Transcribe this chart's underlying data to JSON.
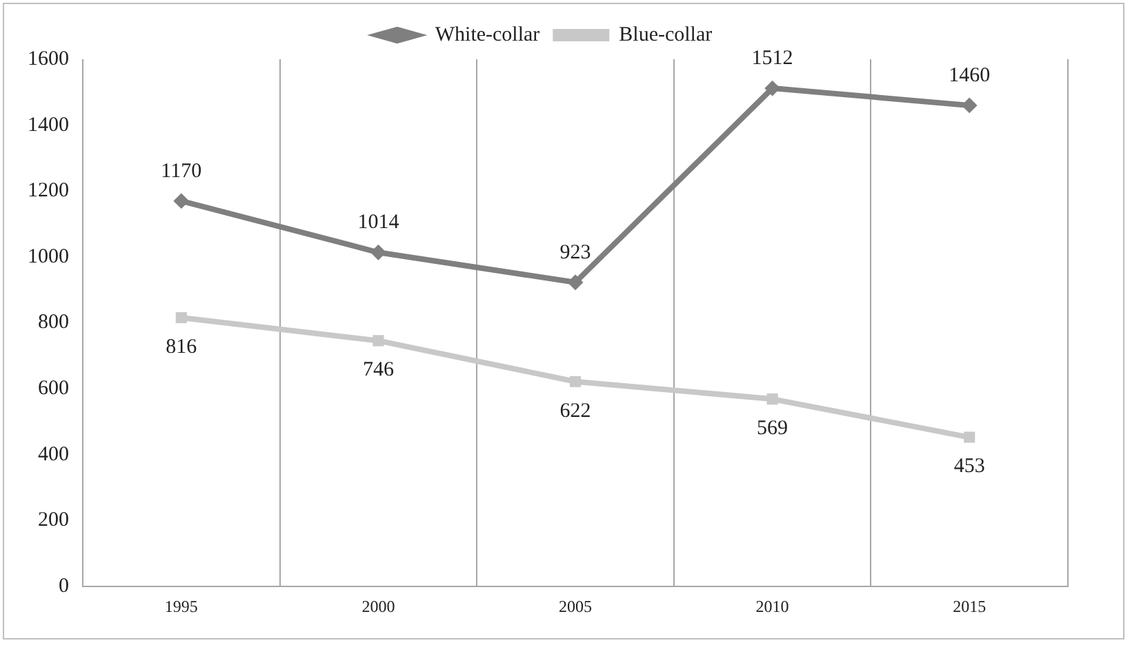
{
  "chart_data": {
    "type": "line",
    "categories": [
      "1995",
      "2000",
      "2005",
      "2010",
      "2015"
    ],
    "series": [
      {
        "name": "White-collar",
        "color": "#7f7f7f",
        "values": [
          1170,
          1014,
          923,
          1512,
          1460
        ],
        "marker": "diamond"
      },
      {
        "name": "Blue-collar",
        "color": "#c8c8c8",
        "values": [
          816,
          746,
          622,
          569,
          453
        ],
        "marker": "square"
      }
    ],
    "ylim": [
      0,
      1600
    ],
    "yticks": [
      0,
      200,
      400,
      600,
      800,
      1000,
      1200,
      1400,
      1600
    ],
    "grid": "x",
    "legend": "top",
    "data_labels": true,
    "line_style": "solid"
  }
}
